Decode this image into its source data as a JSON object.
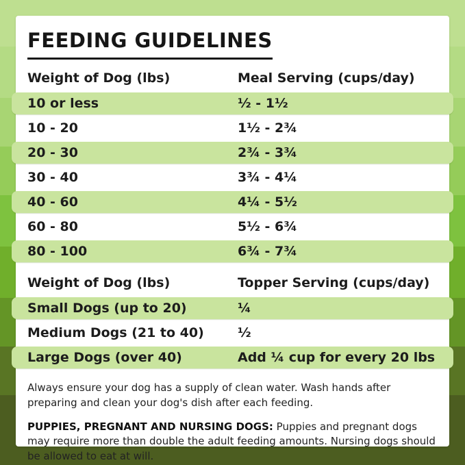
{
  "title": "FEEDING GUIDELINES",
  "meal_table": {
    "col1_header": "Weight of Dog (lbs)",
    "col2_header": "Meal Serving (cups/day)",
    "rows": [
      {
        "weight": "10 or less",
        "serving": "½ - 1½"
      },
      {
        "weight": "10 - 20",
        "serving": "1½ - 2¾"
      },
      {
        "weight": "20 - 30",
        "serving": "2¾ - 3¾"
      },
      {
        "weight": "30 - 40",
        "serving": "3¾ - 4¼"
      },
      {
        "weight": "40 - 60",
        "serving": "4¼ - 5½"
      },
      {
        "weight": "60 - 80",
        "serving": "5½ - 6¾"
      },
      {
        "weight": "80 - 100",
        "serving": "6¾ - 7¾"
      }
    ]
  },
  "topper_table": {
    "col1_header": "Weight of Dog (lbs)",
    "col2_header": "Topper Serving (cups/day)",
    "rows": [
      {
        "weight": "Small Dogs (up to 20)",
        "serving": "¼"
      },
      {
        "weight": "Medium Dogs (21 to 40)",
        "serving": "½"
      },
      {
        "weight": "Large Dogs (over 40)",
        "serving": "Add ¼ cup for every 20 lbs"
      }
    ]
  },
  "notes": {
    "water_note": "Always ensure your dog has a supply of clean water. Wash hands after preparing and clean your dog's dish after each feeding.",
    "puppies_label": "PUPPIES, PREGNANT AND NURSING DOGS:",
    "puppies_note": " Puppies and pregnant dogs may require more than double the adult feeding amounts. Nursing dogs should be allowed to eat at will."
  },
  "colors": {
    "card_bg": "#ffffff",
    "row_highlight": "#c9e49e",
    "text": "#1c1c1c",
    "background_bands": [
      {
        "color": "#bedf90",
        "to": 68
      },
      {
        "color": "#b4db84",
        "to": 143
      },
      {
        "color": "#a8d573",
        "to": 214
      },
      {
        "color": "#95cc59",
        "to": 285
      },
      {
        "color": "#7ec23f",
        "to": 360
      },
      {
        "color": "#70af2b",
        "to": 435
      },
      {
        "color": "#649526",
        "to": 506
      },
      {
        "color": "#597524",
        "to": 577
      },
      {
        "color": "#4c5d20",
        "to": 679
      }
    ]
  }
}
